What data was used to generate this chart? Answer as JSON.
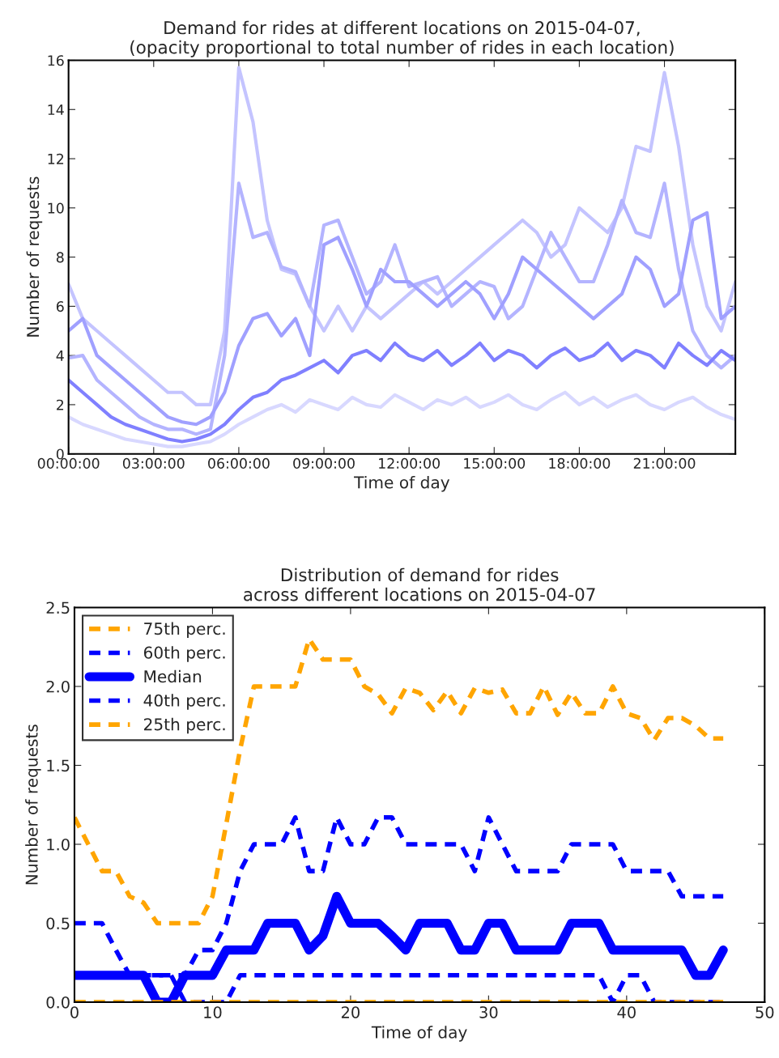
{
  "chart_data": [
    {
      "type": "line",
      "title": "Demand for rides at different locations on 2015-04-07,\n(opacity proportional to total number of rides in each location)",
      "xlabel": "Time of day",
      "ylabel": "Number of requests",
      "x": [
        0,
        0.5,
        1,
        1.5,
        2,
        2.5,
        3,
        3.5,
        4,
        4.5,
        5,
        5.5,
        6,
        6.5,
        7,
        7.5,
        8,
        8.5,
        9,
        9.5,
        10,
        10.5,
        11,
        11.5,
        12,
        12.5,
        13,
        13.5,
        14,
        14.5,
        15,
        15.5,
        16,
        16.5,
        17,
        17.5,
        18,
        18.5,
        19,
        19.5,
        20,
        20.5,
        21,
        21.5,
        22,
        22.5,
        23,
        23.5
      ],
      "xlim": [
        0,
        23.5
      ],
      "xticks": [
        {
          "value": 0,
          "label": "00:00:00"
        },
        {
          "value": 3,
          "label": "03:00:00"
        },
        {
          "value": 6,
          "label": "06:00:00"
        },
        {
          "value": 9,
          "label": "09:00:00"
        },
        {
          "value": 12,
          "label": "12:00:00"
        },
        {
          "value": 15,
          "label": "15:00:00"
        },
        {
          "value": 18,
          "label": "18:00:00"
        },
        {
          "value": 21,
          "label": "21:00:00"
        }
      ],
      "ylim": [
        0,
        16
      ],
      "yticks": [
        0,
        2,
        4,
        6,
        8,
        10,
        12,
        14,
        16
      ],
      "grid": false,
      "legend": false,
      "series": [
        {
          "color": "#c4c4ff",
          "values": [
            6.9,
            5.5,
            5,
            4.5,
            4,
            3.5,
            3,
            2.5,
            2.5,
            2,
            2,
            5,
            15.7,
            13.5,
            9.5,
            7.5,
            7.3,
            6,
            5,
            6,
            5,
            6,
            5.5,
            6,
            6.5,
            7,
            6.5,
            7,
            7.5,
            8,
            8.5,
            9,
            9.5,
            9,
            8,
            8.5,
            10,
            9.5,
            9,
            10,
            12.5,
            12.3,
            15.5,
            12.5,
            8.5,
            6,
            5,
            7
          ]
        },
        {
          "color": "#b4b4ff",
          "values": [
            3.9,
            4,
            3,
            2.5,
            2,
            1.5,
            1.2,
            1,
            1,
            0.8,
            1,
            4,
            11,
            8.8,
            9,
            7.6,
            7.4,
            6,
            9.3,
            9.5,
            8,
            6.5,
            7,
            8.5,
            6.8,
            7,
            7.2,
            6,
            6.5,
            7,
            6.8,
            5.5,
            6,
            7.5,
            9,
            8,
            7,
            7,
            8.5,
            10.3,
            9,
            8.8,
            11,
            7.5,
            5,
            4,
            3.5,
            4
          ]
        },
        {
          "color": "#a0a0ff",
          "values": [
            5,
            5.5,
            4,
            3.5,
            3,
            2.5,
            2,
            1.5,
            1.3,
            1.2,
            1.5,
            2.5,
            4.4,
            5.5,
            5.7,
            4.8,
            5.5,
            4,
            8.5,
            8.8,
            7.5,
            6,
            7.5,
            7,
            7,
            6.5,
            6,
            6.5,
            7,
            6.5,
            5.5,
            6.5,
            8,
            7.5,
            7,
            6.5,
            6,
            5.5,
            6,
            6.5,
            8,
            7.5,
            6,
            6.5,
            9.5,
            9.8,
            5.5,
            6
          ]
        },
        {
          "color": "#8080ff",
          "values": [
            3,
            2.5,
            2,
            1.5,
            1.2,
            1,
            0.8,
            0.6,
            0.5,
            0.6,
            0.8,
            1.2,
            1.8,
            2.3,
            2.5,
            3,
            3.2,
            3.5,
            3.8,
            3.3,
            4,
            4.2,
            3.8,
            4.5,
            4,
            3.8,
            4.2,
            3.6,
            4,
            4.5,
            3.8,
            4.2,
            4,
            3.5,
            4,
            4.3,
            3.8,
            4,
            4.5,
            3.8,
            4.2,
            4,
            3.5,
            4.5,
            4,
            3.6,
            4.2,
            3.8
          ]
        },
        {
          "color": "#d8d8ff",
          "values": [
            1.5,
            1.2,
            1,
            0.8,
            0.6,
            0.5,
            0.4,
            0.3,
            0.3,
            0.4,
            0.5,
            0.8,
            1.2,
            1.5,
            1.8,
            2,
            1.7,
            2.2,
            2,
            1.8,
            2.3,
            2,
            1.9,
            2.4,
            2.1,
            1.8,
            2.2,
            2,
            2.3,
            1.9,
            2.1,
            2.4,
            2,
            1.8,
            2.2,
            2.5,
            2,
            2.3,
            1.9,
            2.2,
            2.4,
            2,
            1.8,
            2.1,
            2.3,
            1.9,
            1.6,
            1.4
          ]
        }
      ]
    },
    {
      "type": "line",
      "title": "Distribution of demand for rides\nacross different locations on 2015-04-07",
      "xlabel": "Time of day",
      "ylabel": "Number of requests",
      "x": [
        0,
        1,
        2,
        3,
        4,
        5,
        6,
        7,
        8,
        9,
        10,
        11,
        12,
        13,
        14,
        15,
        16,
        17,
        18,
        19,
        20,
        21,
        22,
        23,
        24,
        25,
        26,
        27,
        28,
        29,
        30,
        31,
        32,
        33,
        34,
        35,
        36,
        37,
        38,
        39,
        40,
        41,
        42,
        43,
        44,
        45,
        46,
        47
      ],
      "xlim": [
        0,
        50
      ],
      "xticks": [
        0,
        10,
        20,
        30,
        40,
        50
      ],
      "ylim": [
        0,
        2.5
      ],
      "yticks": [
        {
          "value": 0,
          "label": "0.0"
        },
        {
          "value": 0.5,
          "label": "0.5"
        },
        {
          "value": 1,
          "label": "1.0"
        },
        {
          "value": 1.5,
          "label": "1.5"
        },
        {
          "value": 2,
          "label": "2.0"
        },
        {
          "value": 2.5,
          "label": "2.5"
        }
      ],
      "grid": false,
      "legend": "top left",
      "series": [
        {
          "name": "75th perc.",
          "color": "#ffa500",
          "line_style": "dashed",
          "values": [
            1.17,
            1.0,
            0.83,
            0.83,
            0.67,
            0.63,
            0.5,
            0.5,
            0.5,
            0.5,
            0.67,
            1.13,
            1.6,
            2.0,
            2.0,
            2.0,
            2.0,
            2.3,
            2.17,
            2.17,
            2.17,
            2.0,
            1.95,
            1.83,
            1.99,
            1.96,
            1.85,
            1.97,
            1.83,
            1.99,
            1.96,
            1.98,
            1.83,
            1.83,
            2.0,
            1.82,
            1.96,
            1.83,
            1.83,
            2.0,
            1.83,
            1.8,
            1.66,
            1.8,
            1.8,
            1.75,
            1.67,
            1.67
          ]
        },
        {
          "name": "60th perc.",
          "color": "#0000ff",
          "line_style": "dashed",
          "values": [
            0.5,
            0.5,
            0.5,
            0.33,
            0.17,
            0.17,
            0.17,
            0.17,
            0.17,
            0.33,
            0.33,
            0.5,
            0.83,
            1.0,
            1.0,
            1.0,
            1.17,
            0.83,
            0.83,
            1.17,
            1.0,
            1.0,
            1.17,
            1.17,
            1.0,
            1.0,
            1.0,
            1.0,
            1.0,
            0.83,
            1.17,
            1.0,
            0.83,
            0.83,
            0.83,
            0.83,
            1.0,
            1.0,
            1.0,
            1.0,
            0.83,
            0.83,
            0.83,
            0.83,
            0.67,
            0.67,
            0.67,
            0.67
          ]
        },
        {
          "name": "Median",
          "color": "#0000ff",
          "line_style": "solid",
          "values": [
            0.17,
            0.17,
            0.17,
            0.17,
            0.17,
            0.17,
            0,
            0,
            0.17,
            0.17,
            0.17,
            0.33,
            0.33,
            0.33,
            0.5,
            0.5,
            0.5,
            0.33,
            0.42,
            0.67,
            0.5,
            0.5,
            0.5,
            0.42,
            0.33,
            0.5,
            0.5,
            0.5,
            0.33,
            0.33,
            0.5,
            0.5,
            0.33,
            0.33,
            0.33,
            0.33,
            0.5,
            0.5,
            0.5,
            0.33,
            0.33,
            0.33,
            0.33,
            0.33,
            0.33,
            0.17,
            0.17,
            0.33
          ]
        },
        {
          "name": "40th perc.",
          "color": "#0000ff",
          "line_style": "dashed",
          "values": [
            0.17,
            0.17,
            0.17,
            0.17,
            0.17,
            0.17,
            0.17,
            0.17,
            0,
            0,
            0,
            0,
            0.17,
            0.17,
            0.17,
            0.17,
            0.17,
            0.17,
            0.17,
            0.17,
            0.17,
            0.17,
            0.17,
            0.17,
            0.17,
            0.17,
            0.17,
            0.17,
            0.17,
            0.17,
            0.17,
            0.17,
            0.17,
            0.17,
            0.17,
            0.17,
            0.17,
            0.17,
            0.17,
            0,
            0.17,
            0.17,
            0,
            0,
            0,
            0,
            0,
            0
          ]
        },
        {
          "name": "25th perc.",
          "color": "#ffa500",
          "line_style": "dashed",
          "values": [
            0,
            0,
            0,
            0,
            0,
            0,
            0,
            0,
            0,
            0,
            0,
            0,
            0,
            0,
            0,
            0,
            0,
            0,
            0,
            0,
            0,
            0,
            0,
            0,
            0,
            0,
            0,
            0,
            0,
            0,
            0,
            0,
            0,
            0,
            0,
            0,
            0,
            0,
            0,
            0,
            0,
            0,
            0,
            0,
            0,
            0,
            0,
            0
          ]
        }
      ]
    }
  ]
}
